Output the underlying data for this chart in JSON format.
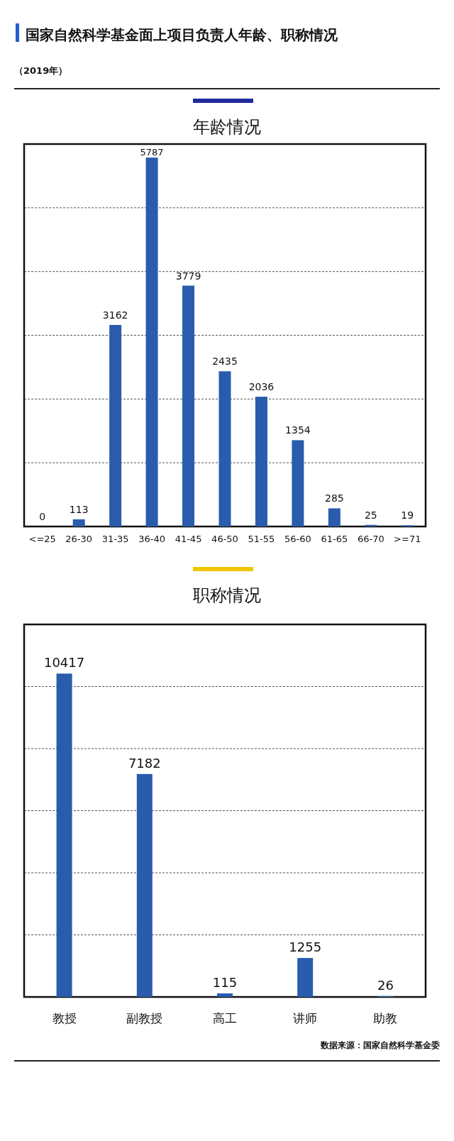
{
  "chart_data": [
    {
      "type": "other",
      "title": "国家自然科学基金面上项目负责人年龄、职称情况",
      "subtitle": "（2019年）"
    },
    {
      "type": "bar",
      "title": "年龄情况",
      "categories": [
        "<=25",
        "26-30",
        "31-35",
        "36-40",
        "41-45",
        "46-50",
        "51-55",
        "56-60",
        "61-65",
        "66-70",
        ">=71"
      ],
      "values": [
        0,
        113,
        3162,
        5787,
        3779,
        2435,
        2036,
        1354,
        285,
        25,
        19
      ],
      "color": "#2a5cad",
      "ylim": [
        0,
        6000
      ],
      "yticks": [
        {
          "value": 0,
          "label": null
        },
        {
          "value": 1000,
          "label": null
        },
        {
          "value": 2000,
          "label": null
        },
        {
          "value": 3000,
          "label": null
        },
        {
          "value": 4000,
          "label": null
        },
        {
          "value": 5000,
          "label": null
        },
        {
          "value": 6000,
          "label": null
        }
      ],
      "grid": "y",
      "tick_labels": "x",
      "data_labels": true
    },
    {
      "type": "bar",
      "title": "职称情况",
      "categories": [
        "教授",
        "副教授",
        "高工",
        "讲师",
        "助教"
      ],
      "values": [
        10417,
        7182,
        115,
        1255,
        26
      ],
      "color": "#2a5cad",
      "ylim": [
        0,
        12000
      ],
      "yticks": [
        {
          "value": 0,
          "label": null
        },
        {
          "value": 2000,
          "label": null
        },
        {
          "value": 4000,
          "label": null
        },
        {
          "value": 6000,
          "label": null
        },
        {
          "value": 8000,
          "label": null
        },
        {
          "value": 10000,
          "label": null
        },
        {
          "value": 12000,
          "label": null
        }
      ],
      "grid": "y",
      "tick_labels": "x",
      "data_labels": true,
      "annotations": [
        "数据来源：国家自然科学基金委"
      ]
    }
  ]
}
